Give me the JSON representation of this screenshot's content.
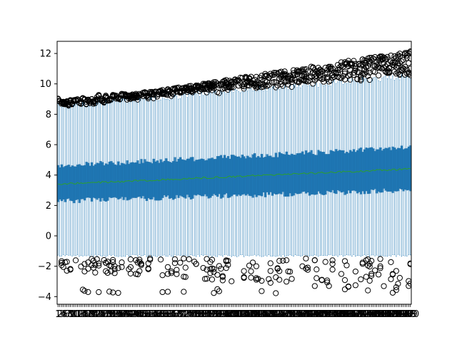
{
  "chart_data": {
    "type": "boxplot",
    "title": "",
    "xlabel": "",
    "ylabel": "",
    "ylim": [
      -4.5,
      12.8
    ],
    "yticks": [
      -4,
      -2,
      0,
      2,
      4,
      6,
      8,
      10,
      12
    ],
    "box_count": 200,
    "box_color": "#1f77b4",
    "median_color": "#2ca02c",
    "grid": false,
    "legend": "none",
    "xtick_label_note": "overlapping unreadable numeric tick labels (1..200)",
    "series": {
      "median": {
        "start": 3.4,
        "end": 4.4
      },
      "q1": {
        "start": 2.3,
        "end": 3.0
      },
      "q3": {
        "start": 4.6,
        "end": 5.8
      },
      "upper_whisker": {
        "start": 8.5,
        "end": 10.5
      },
      "lower_whisker": {
        "start": -1.3,
        "end": -1.3
      },
      "upper_outliers_max": {
        "start": 8.5,
        "end": 12.1
      },
      "lower_outliers_min": {
        "start": -2.1,
        "end": -3.5
      }
    }
  }
}
